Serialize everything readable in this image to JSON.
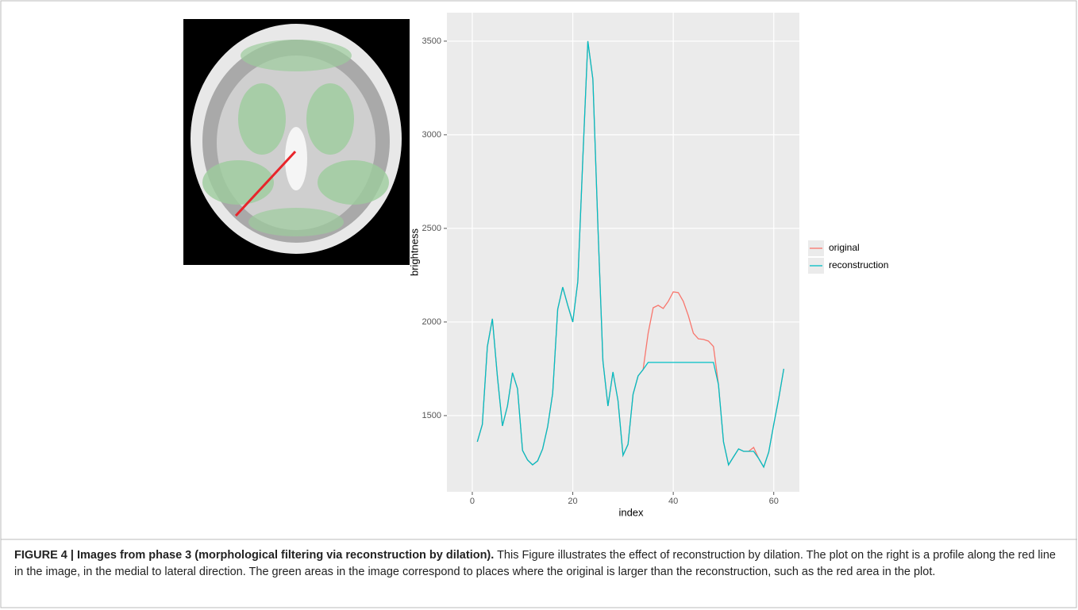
{
  "chart_data": {
    "type": "line",
    "x": [
      1,
      2,
      3,
      4,
      5,
      6,
      7,
      8,
      9,
      10,
      11,
      12,
      13,
      14,
      15,
      16,
      17,
      18,
      19,
      20,
      21,
      22,
      23,
      24,
      25,
      26,
      27,
      28,
      29,
      30,
      31,
      32,
      33,
      34,
      35,
      36,
      37,
      38,
      39,
      40,
      41,
      42,
      43,
      44,
      45,
      46,
      47,
      48,
      49,
      50,
      51,
      52,
      53,
      54,
      55,
      56,
      57,
      58,
      59,
      60,
      61,
      62
    ],
    "series": [
      {
        "name": "original",
        "color": "#f8766d",
        "values": [
          1360,
          1453,
          1869,
          2017,
          1708,
          1445,
          1551,
          1729,
          1644,
          1314,
          1263,
          1237,
          1258,
          1322,
          1441,
          1619,
          2068,
          2186,
          2089,
          2000,
          2216,
          2873,
          3500,
          3297,
          2513,
          1792,
          1551,
          1733,
          1580,
          1288,
          1347,
          1614,
          1712,
          1746,
          1940,
          2076,
          2089,
          2072,
          2110,
          2161,
          2157,
          2110,
          2034,
          1940,
          1910,
          1907,
          1898,
          1869,
          1665,
          1360,
          1237,
          1280,
          1322,
          1309,
          1309,
          1330,
          1271,
          1225,
          1305,
          1453,
          1593,
          1750
        ]
      },
      {
        "name": "reconstruction",
        "color": "#00bfc4",
        "values": [
          1360,
          1453,
          1869,
          2017,
          1708,
          1445,
          1551,
          1729,
          1644,
          1314,
          1263,
          1237,
          1258,
          1322,
          1441,
          1619,
          2068,
          2186,
          2089,
          2000,
          2216,
          2873,
          3500,
          3297,
          2513,
          1792,
          1551,
          1733,
          1580,
          1288,
          1347,
          1614,
          1712,
          1746,
          1784,
          1784,
          1784,
          1784,
          1784,
          1784,
          1784,
          1784,
          1784,
          1784,
          1784,
          1784,
          1784,
          1784,
          1665,
          1360,
          1237,
          1280,
          1322,
          1309,
          1309,
          1309,
          1271,
          1225,
          1305,
          1453,
          1593,
          1750
        ]
      }
    ],
    "x_label": "index",
    "y_label": "brightness",
    "xlim": [
      -5.05,
      65.1
    ],
    "xticks": [
      0,
      20,
      40,
      60
    ],
    "ylim": [
      1093,
      3652
    ],
    "yticks": [
      1500,
      2000,
      2500,
      3000,
      3500
    ],
    "grid": true,
    "legend": "right"
  },
  "caption": {
    "label": "FIGURE 4 | Images from phase 3 (morphological filtering via reconstruction by dilation).",
    "text": "This Figure illustrates the effect of reconstruction by dilation. The plot on the right is a profile along the red line in the image, in the medial to lateral direction. The green areas in the image correspond to places where the original is larger than the reconstruction, such as the red area in the plot."
  }
}
